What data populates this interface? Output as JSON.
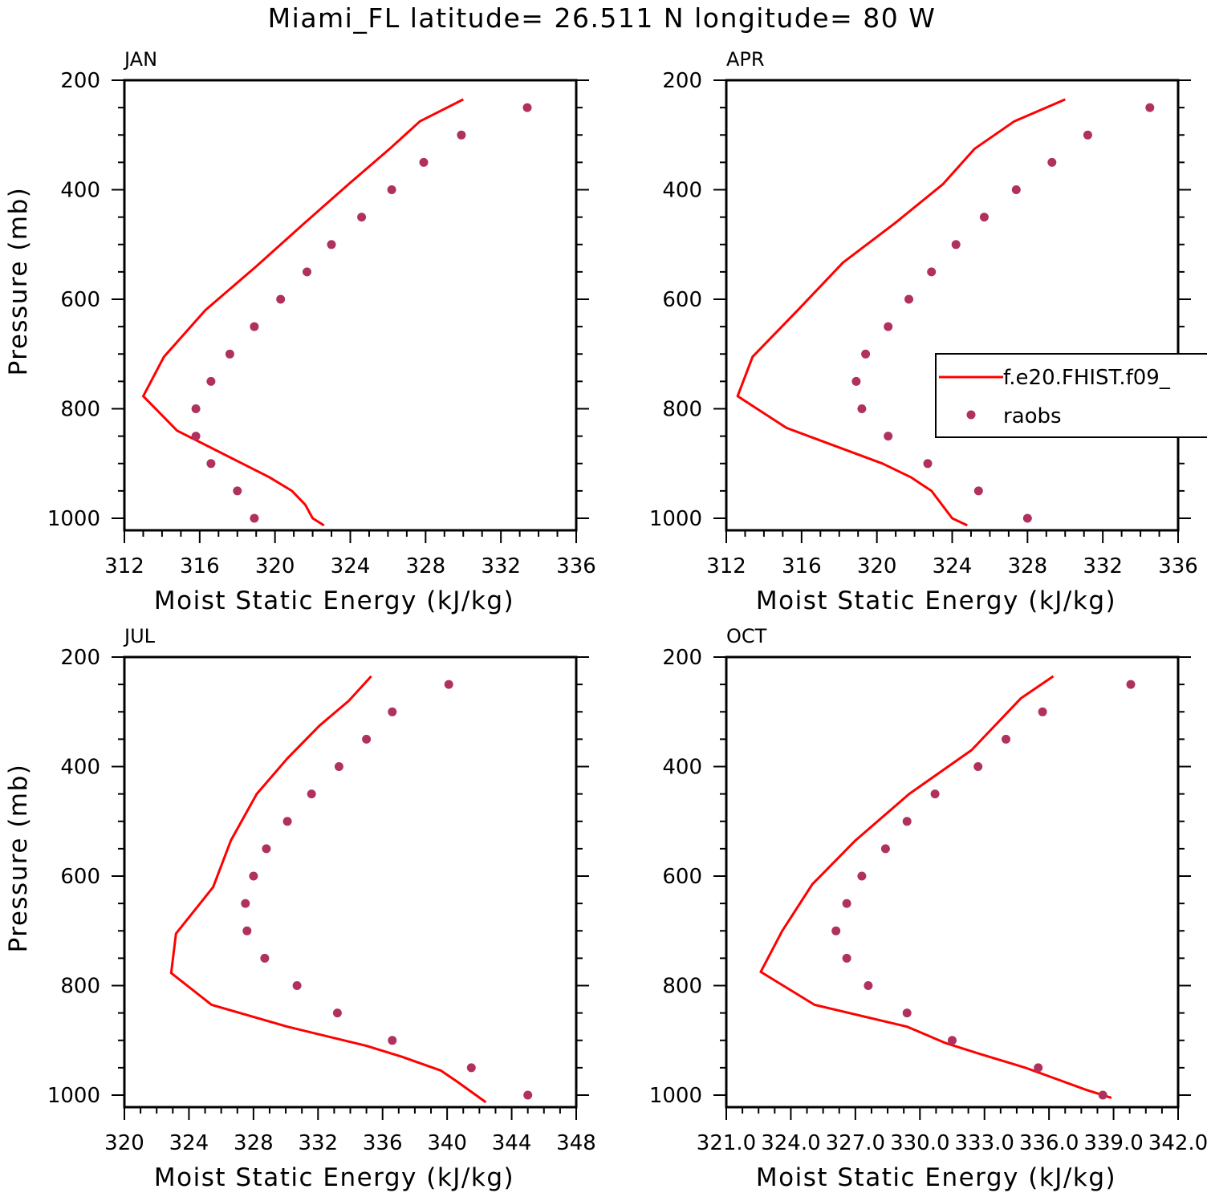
{
  "title": "Miami_FL  latitude= 26.511 N longitude= 80 W",
  "legend": {
    "model_label": "f.e20.FHIST.f09_",
    "obs_label": "raobs"
  },
  "colors": {
    "model_line": "#ff0000",
    "obs_marker": "#b03060"
  },
  "chart_data": [
    {
      "type": "line",
      "panel": "JAN",
      "xlabel": "Moist Static Energy (kJ/kg)",
      "ylabel": "Pressure (mb)",
      "xlim": [
        312,
        336
      ],
      "ylim": [
        1000,
        200
      ],
      "x_ticks": [
        "312",
        "316",
        "320",
        "324",
        "328",
        "332",
        "336"
      ],
      "y_ticks": [
        "200",
        "400",
        "600",
        "800",
        "1000"
      ],
      "series": [
        {
          "name": "f.e20.FHIST.f09_",
          "x": [
            322.6,
            322.0,
            321.6,
            320.9,
            319.7,
            314.8,
            313.0,
            314.1,
            316.3,
            319.0,
            321.6,
            323.9,
            326.1,
            327.7,
            330.0
          ],
          "y": [
            1013,
            1000,
            975,
            950,
            925,
            840,
            777,
            705,
            620,
            540,
            460,
            390,
            325,
            275,
            235
          ]
        },
        {
          "name": "raobs",
          "x": [
            318.9,
            318.0,
            316.6,
            315.8,
            315.8,
            316.6,
            317.6,
            318.9,
            320.3,
            321.7,
            323.0,
            324.6,
            326.2,
            327.9,
            329.9,
            333.4
          ],
          "y": [
            1000,
            950,
            900,
            850,
            800,
            750,
            700,
            650,
            600,
            550,
            500,
            450,
            400,
            350,
            300,
            250
          ]
        }
      ]
    },
    {
      "type": "line",
      "panel": "APR",
      "xlabel": "Moist Static Energy (kJ/kg)",
      "ylabel": "",
      "xlim": [
        312,
        336
      ],
      "ylim": [
        1000,
        200
      ],
      "x_ticks": [
        "312",
        "316",
        "320",
        "324",
        "328",
        "332",
        "336"
      ],
      "y_ticks": [
        "200",
        "400",
        "600",
        "800",
        "1000"
      ],
      "series": [
        {
          "name": "f.e20.FHIST.f09_",
          "x": [
            324.8,
            324.0,
            322.9,
            321.8,
            320.3,
            315.2,
            312.6,
            313.4,
            315.8,
            318.2,
            321.0,
            323.5,
            325.2,
            327.3,
            330.0
          ],
          "y": [
            1013,
            1000,
            950,
            925,
            900,
            835,
            777,
            705,
            620,
            533,
            460,
            390,
            325,
            275,
            235
          ]
        },
        {
          "name": "raobs",
          "x": [
            328.0,
            325.4,
            322.7,
            320.6,
            319.2,
            318.9,
            319.4,
            320.6,
            321.7,
            322.9,
            324.2,
            325.7,
            327.4,
            329.3,
            331.2,
            334.5
          ],
          "y": [
            1000,
            950,
            900,
            850,
            800,
            750,
            700,
            650,
            600,
            550,
            500,
            450,
            400,
            350,
            300,
            250
          ]
        }
      ]
    },
    {
      "type": "line",
      "panel": "JUL",
      "xlabel": "Moist Static Energy (kJ/kg)",
      "ylabel": "Pressure (mb)",
      "xlim": [
        320,
        348
      ],
      "ylim": [
        1000,
        200
      ],
      "x_ticks": [
        "320",
        "324",
        "328",
        "332",
        "336",
        "340",
        "344",
        "348"
      ],
      "y_ticks": [
        "200",
        "400",
        "600",
        "800",
        "1000"
      ],
      "series": [
        {
          "name": "f.e20.FHIST.f09_",
          "x": [
            342.4,
            340.6,
            339.6,
            337.2,
            335.0,
            330.1,
            325.4,
            322.9,
            323.2,
            325.5,
            326.6,
            328.2,
            330.1,
            332.1,
            333.9,
            335.3
          ],
          "y": [
            1013,
            975,
            955,
            930,
            910,
            875,
            835,
            777,
            705,
            620,
            535,
            450,
            385,
            325,
            280,
            235
          ]
        },
        {
          "name": "raobs",
          "x": [
            345.0,
            341.5,
            336.6,
            333.2,
            330.7,
            328.7,
            327.6,
            327.5,
            328.0,
            328.8,
            330.1,
            331.6,
            333.3,
            335.0,
            336.6,
            340.1
          ],
          "y": [
            1000,
            950,
            900,
            850,
            800,
            750,
            700,
            650,
            600,
            550,
            500,
            450,
            400,
            350,
            300,
            250
          ]
        }
      ]
    },
    {
      "type": "line",
      "panel": "OCT",
      "xlabel": "Moist Static Energy (kJ/kg)",
      "ylabel": "",
      "xlim": [
        321.0,
        342.0
      ],
      "ylim": [
        1000,
        200
      ],
      "x_ticks": [
        "321.0",
        "324.0",
        "327.0",
        "330.0",
        "333.0",
        "336.0",
        "339.0",
        "342.0"
      ],
      "y_ticks": [
        "200",
        "400",
        "600",
        "800",
        "1000"
      ],
      "series": [
        {
          "name": "f.e20.FHIST.f09_",
          "x": [
            338.9,
            337.7,
            336.3,
            334.9,
            332.8,
            331.2,
            329.4,
            325.1,
            322.6,
            323.6,
            325.0,
            327.0,
            329.5,
            332.4,
            334.7,
            336.2
          ],
          "y": [
            1005,
            990,
            970,
            950,
            925,
            905,
            875,
            835,
            775,
            700,
            615,
            535,
            450,
            370,
            275,
            235
          ]
        },
        {
          "name": "raobs",
          "x": [
            338.5,
            335.5,
            331.5,
            329.4,
            327.6,
            326.6,
            326.1,
            326.6,
            327.3,
            328.4,
            329.4,
            330.7,
            332.7,
            334.0,
            335.7,
            339.8
          ],
          "y": [
            1000,
            950,
            900,
            850,
            800,
            750,
            700,
            650,
            600,
            550,
            500,
            450,
            400,
            350,
            300,
            250
          ]
        }
      ]
    }
  ]
}
